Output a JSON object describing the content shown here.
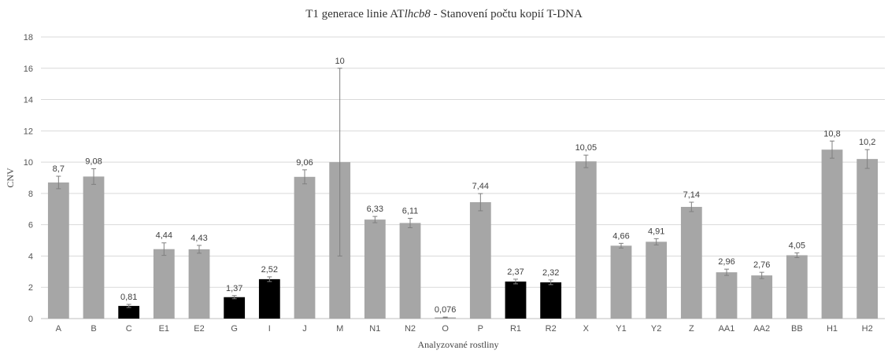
{
  "chart_data": {
    "type": "bar",
    "title_parts": [
      "T1 generace linie AT",
      "lhcb8",
      " - Stanovení počtu kopií T-DNA"
    ],
    "xlabel": "Analyzované rostliny",
    "ylabel": "CNV",
    "ylim": [
      0,
      18
    ],
    "yticks": [
      "0",
      "2",
      "4",
      "6",
      "8",
      "10",
      "12",
      "14",
      "16",
      "18"
    ],
    "ytick_values": [
      0,
      2,
      4,
      6,
      8,
      10,
      12,
      14,
      16,
      18
    ],
    "grid": true,
    "legend": "none",
    "categories": [
      "A",
      "B",
      "C",
      "E1",
      "E2",
      "G",
      "I",
      "J",
      "M",
      "N1",
      "N2",
      "O",
      "P",
      "R1",
      "R2",
      "X",
      "Y1",
      "Y2",
      "Z",
      "AA1",
      "AA2",
      "BB",
      "H1",
      "H2"
    ],
    "values": [
      8.7,
      9.08,
      0.81,
      4.44,
      4.43,
      1.37,
      2.52,
      9.06,
      10,
      6.33,
      6.11,
      0.076,
      7.44,
      2.37,
      2.32,
      10.05,
      4.66,
      4.91,
      7.14,
      2.96,
      2.76,
      4.05,
      10.8,
      10.2
    ],
    "labels": [
      "8,7",
      "9,08",
      "0,81",
      "4,44",
      "4,43",
      "1,37",
      "2,52",
      "9,06",
      "10",
      "6,33",
      "6,11",
      "0,076",
      "7,44",
      "2,37",
      "2,32",
      "10,05",
      "4,66",
      "4,91",
      "7,14",
      "2,96",
      "2,76",
      "4,05",
      "10,8",
      "10,2"
    ],
    "errors": [
      0.4,
      0.5,
      0.1,
      0.4,
      0.25,
      0.1,
      0.15,
      0.45,
      6,
      0.2,
      0.3,
      0.02,
      0.55,
      0.15,
      0.15,
      0.4,
      0.15,
      0.2,
      0.3,
      0.2,
      0.2,
      0.15,
      0.55,
      0.6
    ],
    "bar_colors": [
      "#a6a6a6",
      "#a6a6a6",
      "#000000",
      "#a6a6a6",
      "#a6a6a6",
      "#000000",
      "#000000",
      "#a6a6a6",
      "#a6a6a6",
      "#a6a6a6",
      "#a6a6a6",
      "#a6a6a6",
      "#a6a6a6",
      "#000000",
      "#000000",
      "#a6a6a6",
      "#a6a6a6",
      "#a6a6a6",
      "#a6a6a6",
      "#a6a6a6",
      "#a6a6a6",
      "#a6a6a6",
      "#a6a6a6",
      "#a6a6a6"
    ],
    "colors": {
      "default_bar": "#a6a6a6",
      "highlight_bar": "#000000",
      "error_bar": "#7f7f7f",
      "grid": "#d9d9d9"
    }
  }
}
